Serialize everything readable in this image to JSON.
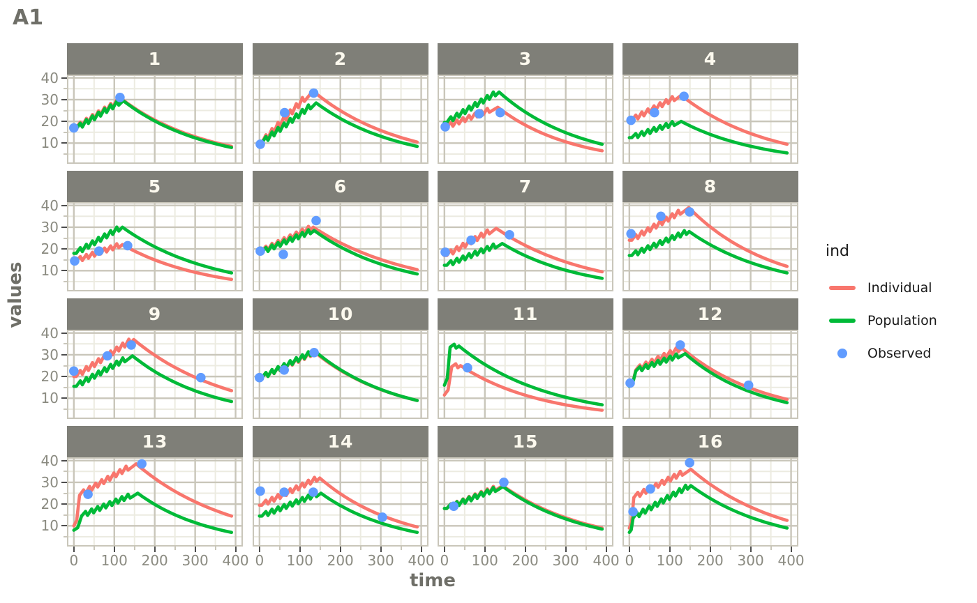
{
  "chart_data": {
    "type": "line",
    "title": "A1",
    "xlabel": "time",
    "ylabel": "values",
    "x_ticks": [
      0,
      100,
      200,
      300,
      400
    ],
    "x_minor_ticks": [
      50,
      150,
      250,
      350
    ],
    "y_ticks": [
      40,
      30,
      20,
      10
    ],
    "y_minor_ticks": [
      5,
      15,
      25,
      35
    ],
    "x_domain": [
      -17,
      418
    ],
    "y_domain": [
      0.5,
      41.5
    ],
    "t_end": 390,
    "grid": "on",
    "legend": {
      "title": "ind",
      "position": "right",
      "items": [
        {
          "label": "Individual",
          "type": "line",
          "color": "#F8766D"
        },
        {
          "label": "Population",
          "type": "line",
          "color": "#00BA38"
        },
        {
          "label": "Observed",
          "type": "point",
          "color": "#619CFF"
        }
      ]
    },
    "colors": {
      "individual": "#F8766D",
      "population": "#00BA38",
      "observed": "#619CFF",
      "strip_bg": "#7f7f78",
      "strip_text": "#fcf9ee",
      "grid_major": "#c9c6ba",
      "grid_minor": "#ecebe1",
      "axis_text": "#8a8a80",
      "axis_title": "#6f6f68",
      "tick_major": "#4d4d4d"
    },
    "panels": [
      {
        "label": "1",
        "individual": {
          "start": 17,
          "peak": 30,
          "peak_t": 120,
          "end": 8.5,
          "jump": null
        },
        "population": {
          "start": 16.5,
          "peak": 29.5,
          "peak_t": 122,
          "end": 8,
          "jump": null
        },
        "observed": [
          [
            0,
            17
          ],
          [
            114,
            31
          ]
        ]
      },
      {
        "label": "2",
        "individual": {
          "start": 10,
          "peak": 34,
          "peak_t": 132,
          "end": 10.5,
          "jump": null
        },
        "population": {
          "start": 10,
          "peak": 28.5,
          "peak_t": 140,
          "end": 8.5,
          "jump": null
        },
        "observed": [
          [
            2,
            9.5
          ],
          [
            62,
            24
          ],
          [
            134,
            33
          ]
        ]
      },
      {
        "label": "3",
        "individual": {
          "start": 17.5,
          "peak": 26.5,
          "peak_t": 132,
          "end": 6.5,
          "jump": null
        },
        "population": {
          "start": 19.5,
          "peak": 33.5,
          "peak_t": 135,
          "end": 9.5,
          "jump": null
        },
        "observed": [
          [
            2,
            17.5
          ],
          [
            86,
            23.5
          ],
          [
            138,
            24
          ]
        ]
      },
      {
        "label": "4",
        "individual": {
          "start": 20.5,
          "peak": 32,
          "peak_t": 128,
          "end": 9.5,
          "jump": null
        },
        "population": {
          "start": 12.5,
          "peak": 20,
          "peak_t": 128,
          "end": 5.5,
          "jump": null
        },
        "observed": [
          [
            4,
            20.5
          ],
          [
            62,
            24
          ],
          [
            135,
            31.5
          ]
        ]
      },
      {
        "label": "5",
        "individual": {
          "start": 14.5,
          "peak": 22,
          "peak_t": 120,
          "end": 6,
          "jump": null
        },
        "population": {
          "start": 18,
          "peak": 30,
          "peak_t": 120,
          "end": 9,
          "jump": null
        },
        "observed": [
          [
            2,
            14.5
          ],
          [
            62,
            19
          ],
          [
            133,
            21.5
          ]
        ]
      },
      {
        "label": "6",
        "individual": {
          "start": 19,
          "peak": 30,
          "peak_t": 133,
          "end": 10.5,
          "jump": null
        },
        "population": {
          "start": 18.5,
          "peak": 28.5,
          "peak_t": 135,
          "end": 8.5,
          "jump": null
        },
        "observed": [
          [
            2,
            19
          ],
          [
            59,
            17.5
          ],
          [
            140,
            33
          ]
        ]
      },
      {
        "label": "7",
        "individual": {
          "start": 17,
          "peak": 29.5,
          "peak_t": 128,
          "end": 9.5,
          "jump": null
        },
        "population": {
          "start": 12.5,
          "peak": 22.5,
          "peak_t": 143,
          "end": 6.5,
          "jump": null
        },
        "observed": [
          [
            2,
            18.5
          ],
          [
            66,
            24
          ],
          [
            161,
            26.5
          ]
        ]
      },
      {
        "label": "8",
        "individual": {
          "start": 24,
          "peak": 39,
          "peak_t": 147,
          "end": 12,
          "jump": null
        },
        "population": {
          "start": 17,
          "peak": 28,
          "peak_t": 148,
          "end": 9,
          "jump": null
        },
        "observed": [
          [
            4,
            27
          ],
          [
            78,
            35
          ],
          [
            149,
            37
          ]
        ]
      },
      {
        "label": "9",
        "individual": {
          "start": 20,
          "peak": 37,
          "peak_t": 148,
          "end": 13.5,
          "jump": null
        },
        "population": {
          "start": 15.5,
          "peak": 29.5,
          "peak_t": 145,
          "end": 8.5,
          "jump": null
        },
        "observed": [
          [
            0,
            22.5
          ],
          [
            83,
            29.5
          ],
          [
            142,
            34.5
          ],
          [
            314,
            19.5
          ]
        ]
      },
      {
        "label": "10",
        "individual": {
          "start": 19.5,
          "peak": 31,
          "peak_t": 138,
          "end": 9,
          "jump": null
        },
        "population": {
          "start": 19.5,
          "peak": 31.5,
          "peak_t": 138,
          "end": 9,
          "jump": null
        },
        "observed": [
          [
            0,
            19.5
          ],
          [
            61,
            23
          ],
          [
            135,
            31
          ]
        ]
      },
      {
        "label": "11",
        "individual": {
          "start": 11.5,
          "peak": 25,
          "peak_t": 40,
          "end": 4.5,
          "jump": [
            18,
            24.5
          ]
        },
        "population": {
          "start": 16,
          "peak": 34,
          "peak_t": 36,
          "end": 7,
          "jump": [
            14,
            33.5
          ]
        },
        "observed": [
          [
            57,
            24
          ]
        ]
      },
      {
        "label": "12",
        "individual": {
          "start": 15.5,
          "peak": 33,
          "peak_t": 130,
          "end": 9.5,
          "jump": [
            16,
            23
          ]
        },
        "population": {
          "start": 15.5,
          "peak": 30.5,
          "peak_t": 138,
          "end": 8,
          "jump": [
            16,
            22.5
          ]
        },
        "observed": [
          [
            2,
            17
          ],
          [
            126,
            34.5
          ],
          [
            295,
            16
          ]
        ]
      },
      {
        "label": "13",
        "individual": {
          "start": 10,
          "peak": 38.5,
          "peak_t": 154,
          "end": 14.5,
          "jump": [
            14,
            24
          ]
        },
        "population": {
          "start": 8,
          "peak": 25,
          "peak_t": 158,
          "end": 7,
          "jump": [
            19,
            14.5
          ]
        },
        "observed": [
          [
            35,
            24.5
          ],
          [
            168,
            38.5
          ]
        ]
      },
      {
        "label": "14",
        "individual": {
          "start": 19.5,
          "peak": 32,
          "peak_t": 149,
          "end": 9.5,
          "jump": null
        },
        "population": {
          "start": 14.5,
          "peak": 25,
          "peak_t": 152,
          "end": 7,
          "jump": null
        },
        "observed": [
          [
            2,
            26
          ],
          [
            61,
            25.5
          ],
          [
            133,
            25.5
          ],
          [
            304,
            14
          ]
        ]
      },
      {
        "label": "15",
        "individual": {
          "start": 18,
          "peak": 28.5,
          "peak_t": 144,
          "end": 9,
          "jump": null
        },
        "population": {
          "start": 18,
          "peak": 28,
          "peak_t": 145,
          "end": 8.5,
          "jump": null
        },
        "observed": [
          [
            23,
            19
          ],
          [
            147,
            30
          ]
        ]
      },
      {
        "label": "16",
        "individual": {
          "start": 9,
          "peak": 36,
          "peak_t": 152,
          "end": 12.5,
          "jump": [
            11,
            23
          ]
        },
        "population": {
          "start": 7,
          "peak": 28.5,
          "peak_t": 152,
          "end": 9,
          "jump": [
            9,
            13.5
          ]
        },
        "observed": [
          [
            9,
            16.5
          ],
          [
            52,
            27
          ],
          [
            149,
            39
          ]
        ]
      }
    ]
  }
}
